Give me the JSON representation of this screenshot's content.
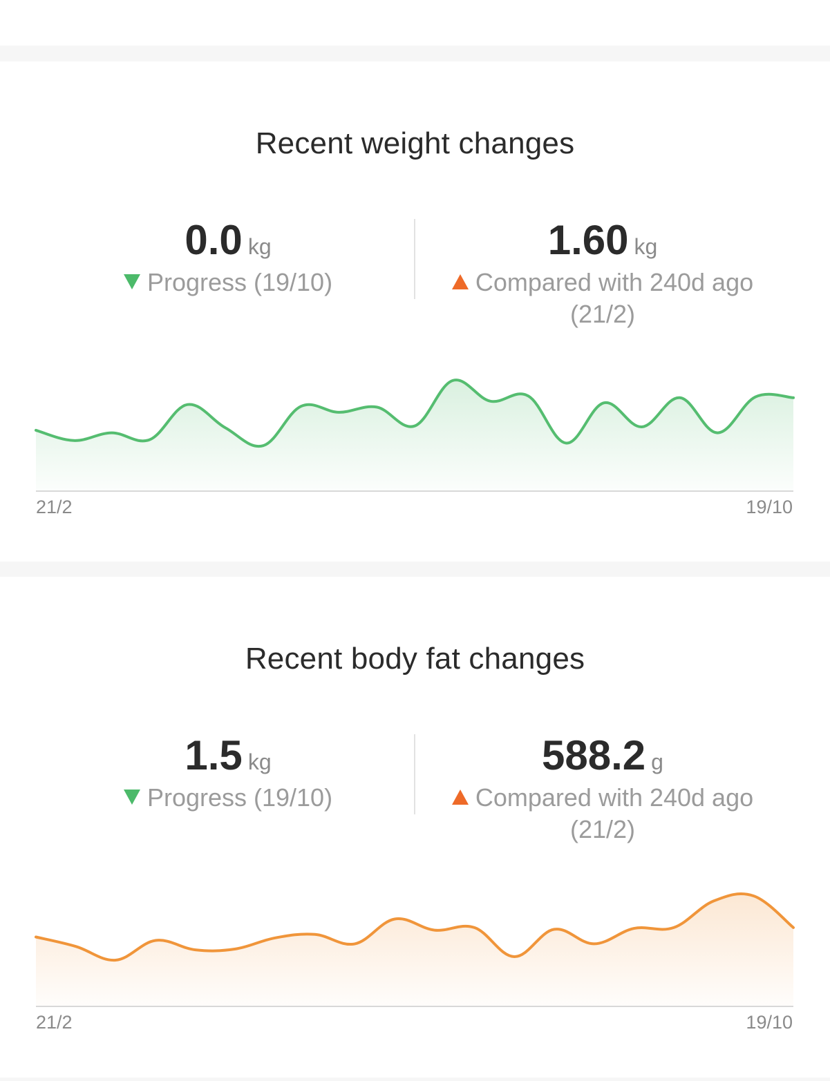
{
  "weight": {
    "title": "Recent weight changes",
    "left": {
      "value": "0.0",
      "unit": "kg",
      "caption": "Progress (19/10)",
      "direction": "down"
    },
    "right": {
      "value": "1.60",
      "unit": "kg",
      "caption_line1": "Compared with 240d ago",
      "caption_line2": "(21/2)",
      "direction": "up"
    },
    "axis": {
      "start": "21/2",
      "end": "19/10"
    }
  },
  "body_fat": {
    "title": "Recent body fat changes",
    "left": {
      "value": "1.5",
      "unit": "kg",
      "caption": "Progress (19/10)",
      "direction": "down"
    },
    "right": {
      "value": "588.2",
      "unit": "g",
      "caption_line1": "Compared with 240d ago",
      "caption_line2": "(21/2)",
      "direction": "up"
    },
    "axis": {
      "start": "21/2",
      "end": "19/10"
    }
  },
  "colors": {
    "weight_line": "#55bd70",
    "body_fat_line": "#f0953a",
    "down_indicator": "#4cba6a",
    "up_indicator": "#ee6a28"
  },
  "chart_data": [
    {
      "type": "area",
      "x_start_label": "21/2",
      "x_end_label": "19/10",
      "values": [
        0.42,
        0.3,
        0.39,
        0.31,
        0.72,
        0.45,
        0.24,
        0.7,
        0.63,
        0.69,
        0.47,
        1.0,
        0.76,
        0.82,
        0.27,
        0.74,
        0.46,
        0.8,
        0.39,
        0.81,
        0.8
      ]
    },
    {
      "type": "area",
      "x_start_label": "21/2",
      "x_end_label": "19/10",
      "values": [
        0.52,
        0.41,
        0.25,
        0.48,
        0.37,
        0.38,
        0.51,
        0.55,
        0.44,
        0.73,
        0.6,
        0.63,
        0.29,
        0.61,
        0.44,
        0.62,
        0.63,
        0.94,
        1.0,
        0.63
      ]
    }
  ]
}
